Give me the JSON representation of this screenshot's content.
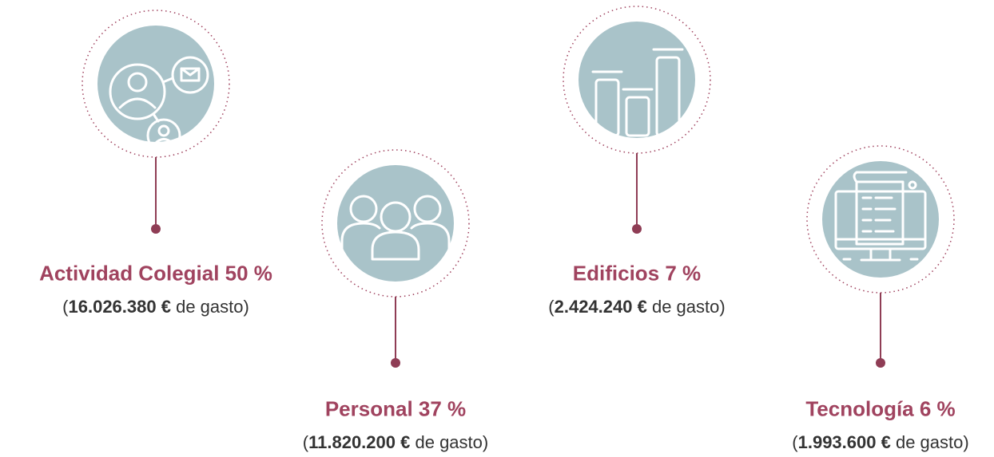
{
  "items": [
    {
      "title": "Actividad Colegial 50 %",
      "detail": [
        "(",
        "16.026.380 €",
        "de gasto)"
      ]
    },
    {
      "title": "Personal 37 %",
      "detail": [
        "(",
        "11.820.200 €",
        "de gasto)"
      ]
    },
    {
      "title": "Edificios 7 %",
      "detail": [
        "(",
        "2.424.240 €",
        "de gasto)"
      ]
    },
    {
      "title": "Tecnología 6 %",
      "detail": [
        "(",
        "1.993.600 €",
        "de gasto)"
      ]
    }
  ]
}
